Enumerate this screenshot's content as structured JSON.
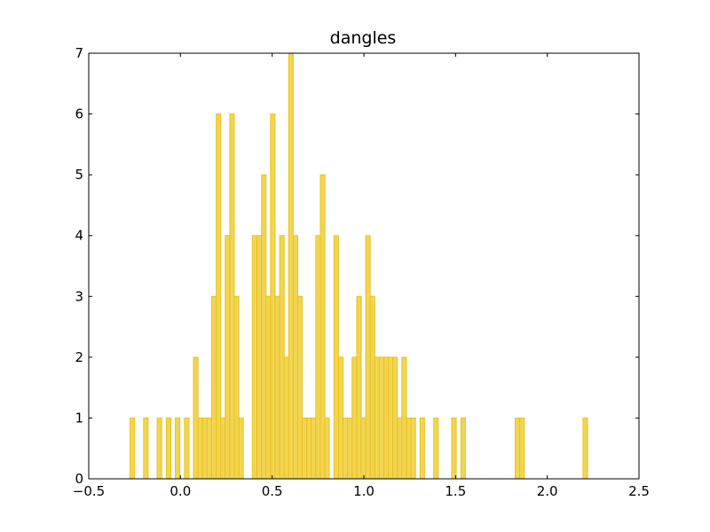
{
  "chart_data": {
    "type": "bar",
    "title": "dangles",
    "xlabel": "",
    "ylabel": "",
    "xlim": [
      -0.5,
      2.5
    ],
    "ylim": [
      0,
      7
    ],
    "grid": false,
    "bar_color": "#f2d553",
    "bar_edge_color": "#e8c31e",
    "x_ticks": [
      -0.5,
      0.0,
      0.5,
      1.0,
      1.5,
      2.0,
      2.5
    ],
    "x_tick_labels": [
      "−0.5",
      "0.0",
      "0.5",
      "1.0",
      "1.5",
      "2.0",
      "2.5"
    ],
    "y_ticks": [
      0,
      1,
      2,
      3,
      4,
      5,
      6,
      7
    ],
    "y_tick_labels": [
      "0",
      "1",
      "2",
      "3",
      "4",
      "5",
      "6",
      "7"
    ],
    "bin_width": 0.0247,
    "x": [
      -0.275,
      -0.201,
      -0.127,
      -0.077,
      -0.028,
      0.022,
      0.071,
      0.096,
      0.121,
      0.145,
      0.17,
      0.195,
      0.22,
      0.244,
      0.269,
      0.294,
      0.318,
      0.392,
      0.417,
      0.442,
      0.466,
      0.491,
      0.516,
      0.541,
      0.565,
      0.59,
      0.615,
      0.639,
      0.664,
      0.689,
      0.713,
      0.738,
      0.763,
      0.787,
      0.837,
      0.862,
      0.886,
      0.911,
      0.936,
      0.961,
      0.985,
      1.01,
      1.035,
      1.059,
      1.084,
      1.109,
      1.133,
      1.158,
      1.183,
      1.207,
      1.232,
      1.257,
      1.306,
      1.381,
      1.479,
      1.529,
      1.825,
      1.85,
      2.195
    ],
    "values": [
      1,
      1,
      1,
      1,
      1,
      1,
      2,
      1,
      1,
      1,
      3,
      6,
      1,
      4,
      6,
      3,
      1,
      4,
      4,
      5,
      3,
      6,
      3,
      4,
      2,
      7,
      4,
      3,
      1,
      1,
      1,
      4,
      5,
      1,
      4,
      2,
      1,
      1,
      2,
      3,
      1,
      4,
      3,
      2,
      2,
      2,
      2,
      2,
      1,
      2,
      1,
      1,
      1,
      1,
      1,
      1,
      1,
      1,
      1
    ]
  }
}
